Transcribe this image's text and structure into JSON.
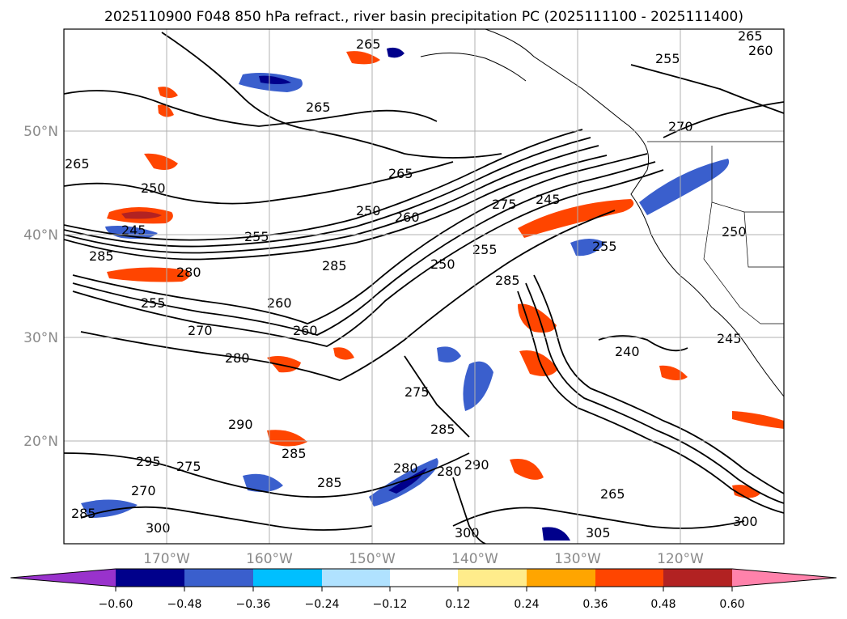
{
  "title": "2025110900 F048 850 hPa refract., river basin precipitation PC (2025111100 - 2025111400)",
  "map": {
    "lat_labels": [
      "50°N",
      "40°N",
      "30°N",
      "20°N"
    ],
    "lon_labels": [
      "170°W",
      "160°W",
      "150°W",
      "140°W",
      "130°W",
      "120°W"
    ],
    "contour_labels": [
      "265",
      "255",
      "265",
      "260",
      "265",
      "265",
      "270",
      "250",
      "265",
      "250",
      "260",
      "245",
      "255",
      "275",
      "245",
      "285",
      "280",
      "285",
      "250",
      "255",
      "260",
      "255",
      "285",
      "255",
      "250",
      "270",
      "260",
      "280",
      "245",
      "240",
      "275",
      "285",
      "290",
      "295",
      "275",
      "280",
      "280",
      "285",
      "285",
      "290",
      "270",
      "300",
      "300",
      "305",
      "300",
      "265",
      "285"
    ]
  },
  "colorbar": {
    "colors": [
      "#9932cc",
      "#00008b",
      "#3a5fcd",
      "#00bfff",
      "#b0e2ff",
      "#ffffff",
      "#ffec8b",
      "#ffa500",
      "#ff4500",
      "#b22222",
      "#ff82ab"
    ],
    "ticks": [
      "−0.60",
      "−0.48",
      "−0.36",
      "−0.24",
      "−0.12",
      "0.12",
      "0.24",
      "0.36",
      "0.48",
      "0.60"
    ]
  }
}
